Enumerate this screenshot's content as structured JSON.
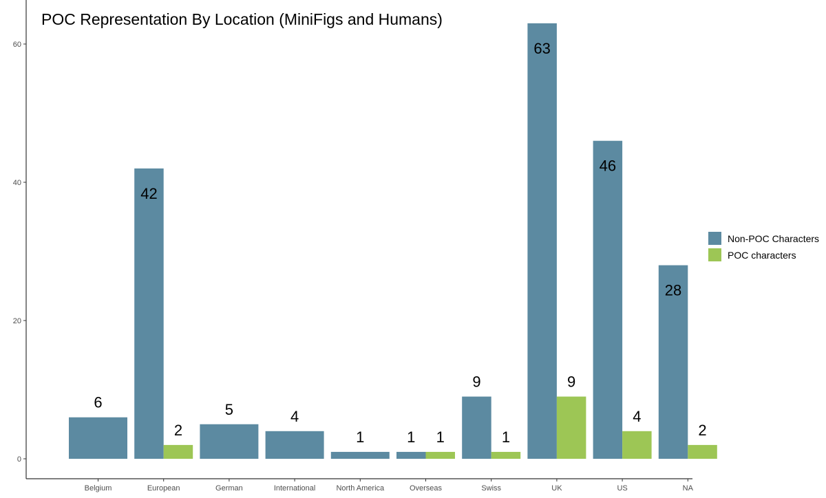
{
  "chart_data": {
    "type": "bar",
    "title": "POC Representation By Location (MiniFigs and Humans)",
    "xlabel": "",
    "ylabel": "",
    "categories": [
      "Belgium",
      "European",
      "German",
      "International",
      "North America",
      "Overseas",
      "Swiss",
      "UK",
      "US",
      "NA"
    ],
    "series": [
      {
        "name": "Non-POC Characters",
        "color": "#5c8aa1",
        "values": [
          6,
          42,
          5,
          4,
          1,
          1,
          9,
          63,
          46,
          28
        ]
      },
      {
        "name": "POC characters",
        "color": "#9dc655",
        "values": [
          null,
          2,
          null,
          null,
          null,
          1,
          1,
          9,
          4,
          2
        ]
      }
    ],
    "ylim": [
      0,
      65
    ],
    "y_ticks": [
      0,
      20,
      40,
      60
    ],
    "grid": false,
    "legend_position": "right",
    "label_placement_note": "value labels above bars; tall bars (>=20) show label inside near top"
  }
}
